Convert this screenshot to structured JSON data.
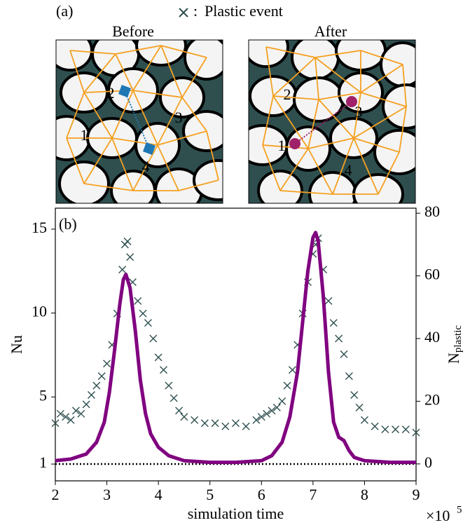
{
  "panel_a": {
    "label": "(a)",
    "panels": [
      {
        "title": "Before",
        "labels": [
          "1",
          "2",
          "3",
          "4"
        ]
      },
      {
        "title": "After",
        "labels": [
          "1",
          "2",
          "3",
          "4"
        ]
      }
    ]
  },
  "chart_data": {
    "type": "line",
    "label": "(b)",
    "xlabel": "simulation time",
    "x_multiplier": {
      "base": "×10",
      "exponent": "5"
    },
    "ylabel": "Nu",
    "y2label": {
      "text": "N",
      "subscript": "plastic"
    },
    "legend_separator": ":",
    "xlim": [
      2,
      9
    ],
    "xticks": [
      2,
      3,
      4,
      5,
      6,
      7,
      8,
      9
    ],
    "ylim": [
      0,
      16.25
    ],
    "yticks": [
      1,
      5,
      10,
      15
    ],
    "y2lim": [
      -5.4,
      81.6
    ],
    "y2ticks": [
      0,
      20,
      40,
      60,
      80
    ],
    "reference_line": 1,
    "series": [
      {
        "type": "line",
        "color": "#800080",
        "x": [
          2.0,
          2.3,
          2.6,
          2.8,
          2.95,
          3.05,
          3.15,
          3.25,
          3.32,
          3.37,
          3.45,
          3.55,
          3.65,
          3.75,
          3.85,
          4.0,
          4.2,
          4.5,
          5.0,
          5.5,
          6.0,
          6.2,
          6.4,
          6.55,
          6.7,
          6.8,
          6.9,
          7.0,
          7.05,
          7.1,
          7.2,
          7.3,
          7.4,
          7.5,
          7.6,
          7.7,
          7.8,
          8.0,
          8.5,
          9.0
        ],
        "values": [
          1.2,
          1.3,
          1.6,
          2.3,
          3.5,
          5.3,
          7.8,
          10.5,
          12.0,
          12.3,
          11.5,
          9.0,
          6.0,
          4.0,
          2.8,
          2.0,
          1.5,
          1.2,
          1.1,
          1.1,
          1.2,
          1.5,
          2.3,
          3.8,
          6.5,
          9.5,
          12.5,
          14.5,
          14.8,
          14.3,
          11.0,
          6.5,
          3.5,
          2.6,
          2.4,
          1.8,
          1.4,
          1.2,
          1.1,
          1.1
        ]
      },
      {
        "type": "scatter",
        "name": "Plastic event",
        "color": "#2f4f4f",
        "axis": "y2",
        "x": [
          2.0,
          2.1,
          2.2,
          2.3,
          2.4,
          2.5,
          2.6,
          2.7,
          2.8,
          2.9,
          3.0,
          3.1,
          3.2,
          3.3,
          3.35,
          3.4,
          3.45,
          3.5,
          3.6,
          3.7,
          3.8,
          3.9,
          4.0,
          4.1,
          4.2,
          4.3,
          4.4,
          4.5,
          4.7,
          4.9,
          5.1,
          5.3,
          5.5,
          5.7,
          5.9,
          6.0,
          6.1,
          6.2,
          6.3,
          6.4,
          6.5,
          6.6,
          6.7,
          6.8,
          6.9,
          7.0,
          7.05,
          7.1,
          7.2,
          7.3,
          7.4,
          7.5,
          7.6,
          7.7,
          7.8,
          7.9,
          8.0,
          8.2,
          8.4,
          8.6,
          8.8,
          9.0
        ],
        "values": [
          13,
          16,
          15,
          14,
          17,
          16,
          19,
          22,
          25,
          28,
          32,
          38,
          48,
          62,
          70,
          71,
          66,
          58,
          52,
          48,
          45,
          40,
          34,
          30,
          25,
          21,
          17,
          15,
          14,
          13,
          13,
          12,
          13,
          12,
          14,
          15,
          16,
          17,
          18,
          20,
          25,
          30,
          38,
          48,
          58,
          67,
          70,
          72,
          62,
          52,
          45,
          40,
          35,
          28,
          22,
          18,
          14,
          12,
          11,
          11,
          11,
          10
        ]
      }
    ]
  }
}
